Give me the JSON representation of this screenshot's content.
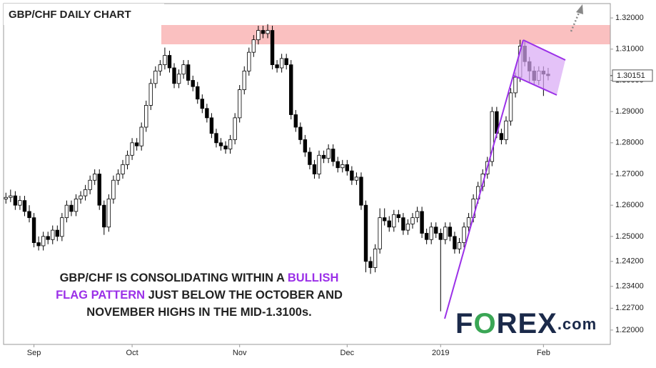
{
  "chart_data": {
    "type": "candlestick",
    "title": "GBP/CHF DAILY CHART",
    "annotation": [
      [
        "GBP/CHF IS CONSOLIDATING WITHIN A ",
        "BULLISH"
      ],
      [
        "FLAG PATTERN",
        " JUST BELOW THE OCTOBER AND"
      ],
      [
        "NOVEMBER HIGHS IN THE MID-1.3100s."
      ]
    ],
    "logo": [
      "F",
      "O",
      "REX",
      ".com"
    ],
    "last_price": 1.30151,
    "ylim": [
      1.2154,
      1.3246
    ],
    "yticks": [
      {
        "value": 1.22,
        "label": "1.22000"
      },
      {
        "value": 1.227,
        "label": "1.22700"
      },
      {
        "value": 1.234,
        "label": "1.23400"
      },
      {
        "value": 1.242,
        "label": "1.24200"
      },
      {
        "value": 1.25,
        "label": "1.25000"
      },
      {
        "value": 1.26,
        "label": "1.26000"
      },
      {
        "value": 1.27,
        "label": "1.27000"
      },
      {
        "value": 1.28,
        "label": "1.28000"
      },
      {
        "value": 1.29,
        "label": "1.29000"
      },
      {
        "value": 1.3,
        "label": "1.30000"
      },
      {
        "value": 1.31,
        "label": "1.31000"
      },
      {
        "value": 1.32,
        "label": "1.32000"
      }
    ],
    "xlim": [
      -0.5,
      129.3
    ],
    "xticks": [
      {
        "value": 6,
        "label": "Sep"
      },
      {
        "value": 27,
        "label": "Oct"
      },
      {
        "value": 50,
        "label": "Nov"
      },
      {
        "value": 73,
        "label": "Dec"
      },
      {
        "value": 93,
        "label": "2019"
      },
      {
        "value": 115,
        "label": "Feb"
      }
    ],
    "up_color": "#ffffff",
    "down_color": "#000000",
    "ohlc": [
      [
        1.262,
        1.264,
        1.2605,
        1.2625
      ],
      [
        1.2625,
        1.265,
        1.261,
        1.263
      ],
      [
        1.263,
        1.2645,
        1.2585,
        1.26
      ],
      [
        1.26,
        1.263,
        1.2585,
        1.2615
      ],
      [
        1.2615,
        1.263,
        1.2565,
        1.258
      ],
      [
        1.258,
        1.26,
        1.2545,
        1.256
      ],
      [
        1.256,
        1.2575,
        1.2465,
        1.248
      ],
      [
        1.248,
        1.25,
        1.2455,
        1.247
      ],
      [
        1.247,
        1.2515,
        1.2455,
        1.25
      ],
      [
        1.25,
        1.2515,
        1.2475,
        1.249
      ],
      [
        1.249,
        1.2535,
        1.2475,
        1.252
      ],
      [
        1.252,
        1.2535,
        1.2485,
        1.25
      ],
      [
        1.25,
        1.2575,
        1.2485,
        1.256
      ],
      [
        1.256,
        1.2615,
        1.2545,
        1.26
      ],
      [
        1.26,
        1.2615,
        1.2565,
        1.258
      ],
      [
        1.258,
        1.2635,
        1.2565,
        1.262
      ],
      [
        1.262,
        1.2645,
        1.2605,
        1.263
      ],
      [
        1.263,
        1.2665,
        1.2615,
        1.265
      ],
      [
        1.265,
        1.2695,
        1.2635,
        1.268
      ],
      [
        1.268,
        1.2715,
        1.2665,
        1.27
      ],
      [
        1.27,
        1.2715,
        1.2585,
        1.26
      ],
      [
        1.26,
        1.2615,
        1.2505,
        1.253
      ],
      [
        1.253,
        1.2635,
        1.2515,
        1.262
      ],
      [
        1.262,
        1.2695,
        1.2605,
        1.268
      ],
      [
        1.268,
        1.2715,
        1.2665,
        1.27
      ],
      [
        1.27,
        1.2745,
        1.2685,
        1.273
      ],
      [
        1.273,
        1.2775,
        1.2715,
        1.276
      ],
      [
        1.276,
        1.2815,
        1.2745,
        1.28
      ],
      [
        1.28,
        1.2815,
        1.2775,
        1.279
      ],
      [
        1.279,
        1.2865,
        1.2775,
        1.285
      ],
      [
        1.285,
        1.2935,
        1.2835,
        1.292
      ],
      [
        1.292,
        1.3005,
        1.2905,
        1.299
      ],
      [
        1.299,
        1.3045,
        1.2975,
        1.303
      ],
      [
        1.303,
        1.3065,
        1.3015,
        1.305
      ],
      [
        1.305,
        1.3105,
        1.3035,
        1.308
      ],
      [
        1.308,
        1.3095,
        1.3025,
        1.304
      ],
      [
        1.304,
        1.3055,
        1.2975,
        1.299
      ],
      [
        1.299,
        1.3035,
        1.2975,
        1.302
      ],
      [
        1.302,
        1.3065,
        1.3005,
        1.305
      ],
      [
        1.305,
        1.3065,
        1.2985,
        1.3
      ],
      [
        1.3,
        1.3015,
        1.2965,
        1.298
      ],
      [
        1.298,
        1.2995,
        1.2925,
        1.294
      ],
      [
        1.294,
        1.2955,
        1.2895,
        1.291
      ],
      [
        1.291,
        1.2925,
        1.2865,
        1.288
      ],
      [
        1.288,
        1.2895,
        1.2815,
        1.283
      ],
      [
        1.283,
        1.2845,
        1.2785,
        1.28
      ],
      [
        1.28,
        1.2815,
        1.2775,
        1.279
      ],
      [
        1.279,
        1.2805,
        1.2765,
        1.278
      ],
      [
        1.278,
        1.2825,
        1.2765,
        1.281
      ],
      [
        1.281,
        1.2895,
        1.2795,
        1.288
      ],
      [
        1.288,
        1.2985,
        1.2865,
        1.297
      ],
      [
        1.297,
        1.3045,
        1.2955,
        1.303
      ],
      [
        1.303,
        1.3105,
        1.3015,
        1.309
      ],
      [
        1.309,
        1.3145,
        1.3075,
        1.313
      ],
      [
        1.313,
        1.3175,
        1.3115,
        1.316
      ],
      [
        1.316,
        1.3175,
        1.3135,
        1.315
      ],
      [
        1.315,
        1.318,
        1.3135,
        1.316
      ],
      [
        1.316,
        1.3175,
        1.3035,
        1.305
      ],
      [
        1.305,
        1.3065,
        1.3025,
        1.304
      ],
      [
        1.304,
        1.3085,
        1.3025,
        1.307
      ],
      [
        1.307,
        1.3085,
        1.3035,
        1.305
      ],
      [
        1.305,
        1.3065,
        1.2875,
        1.289
      ],
      [
        1.289,
        1.2905,
        1.2835,
        1.285
      ],
      [
        1.285,
        1.2865,
        1.2795,
        1.281
      ],
      [
        1.281,
        1.2825,
        1.2755,
        1.277
      ],
      [
        1.277,
        1.2785,
        1.2715,
        1.273
      ],
      [
        1.273,
        1.2745,
        1.2685,
        1.27
      ],
      [
        1.27,
        1.2775,
        1.2685,
        1.276
      ],
      [
        1.276,
        1.2775,
        1.2735,
        1.275
      ],
      [
        1.275,
        1.2795,
        1.2735,
        1.278
      ],
      [
        1.278,
        1.2795,
        1.2725,
        1.274
      ],
      [
        1.274,
        1.2755,
        1.2705,
        1.272
      ],
      [
        1.272,
        1.2745,
        1.2705,
        1.273
      ],
      [
        1.273,
        1.2745,
        1.2695,
        1.271
      ],
      [
        1.271,
        1.2725,
        1.2665,
        1.268
      ],
      [
        1.268,
        1.2705,
        1.2665,
        1.269
      ],
      [
        1.269,
        1.2705,
        1.2585,
        1.26
      ],
      [
        1.26,
        1.2615,
        1.2385,
        1.242
      ],
      [
        1.242,
        1.2435,
        1.238,
        1.24
      ],
      [
        1.24,
        1.2475,
        1.2385,
        1.246
      ],
      [
        1.246,
        1.259,
        1.2445,
        1.256
      ],
      [
        1.256,
        1.259,
        1.2535,
        1.255
      ],
      [
        1.255,
        1.2565,
        1.2515,
        1.253
      ],
      [
        1.253,
        1.2585,
        1.2515,
        1.257
      ],
      [
        1.257,
        1.2585,
        1.2545,
        1.256
      ],
      [
        1.256,
        1.2575,
        1.2505,
        1.252
      ],
      [
        1.252,
        1.2555,
        1.2505,
        1.254
      ],
      [
        1.254,
        1.2575,
        1.2525,
        1.256
      ],
      [
        1.256,
        1.2595,
        1.2545,
        1.258
      ],
      [
        1.258,
        1.2595,
        1.2495,
        1.251
      ],
      [
        1.251,
        1.2525,
        1.2475,
        1.249
      ],
      [
        1.249,
        1.2545,
        1.2475,
        1.253
      ],
      [
        1.253,
        1.2545,
        1.2495,
        1.251
      ],
      [
        1.251,
        1.2525,
        1.226,
        1.249
      ],
      [
        1.249,
        1.2545,
        1.2475,
        1.253
      ],
      [
        1.253,
        1.2545,
        1.2485,
        1.25
      ],
      [
        1.25,
        1.2515,
        1.2445,
        1.246
      ],
      [
        1.246,
        1.2495,
        1.2445,
        1.248
      ],
      [
        1.248,
        1.2545,
        1.2465,
        1.253
      ],
      [
        1.253,
        1.2575,
        1.2515,
        1.256
      ],
      [
        1.256,
        1.2635,
        1.2545,
        1.262
      ],
      [
        1.262,
        1.2675,
        1.2605,
        1.266
      ],
      [
        1.266,
        1.2715,
        1.2645,
        1.27
      ],
      [
        1.27,
        1.2755,
        1.2685,
        1.274
      ],
      [
        1.274,
        1.2915,
        1.2725,
        1.29
      ],
      [
        1.29,
        1.2915,
        1.2815,
        1.283
      ],
      [
        1.283,
        1.2845,
        1.2795,
        1.281
      ],
      [
        1.281,
        1.2885,
        1.2795,
        1.287
      ],
      [
        1.287,
        1.2975,
        1.2855,
        1.296
      ],
      [
        1.296,
        1.3025,
        1.2945,
        1.301
      ],
      [
        1.301,
        1.313,
        1.2995,
        1.311
      ],
      [
        1.311,
        1.3125,
        1.3045,
        1.306
      ],
      [
        1.306,
        1.3075,
        1.2995,
        1.303
      ],
      [
        1.303,
        1.3045,
        1.2985,
        1.3
      ],
      [
        1.3,
        1.3045,
        1.2985,
        1.303
      ],
      [
        1.303,
        1.3045,
        1.295,
        1.302
      ],
      [
        1.302,
        1.304,
        1.3,
        1.3015
      ]
    ]
  }
}
